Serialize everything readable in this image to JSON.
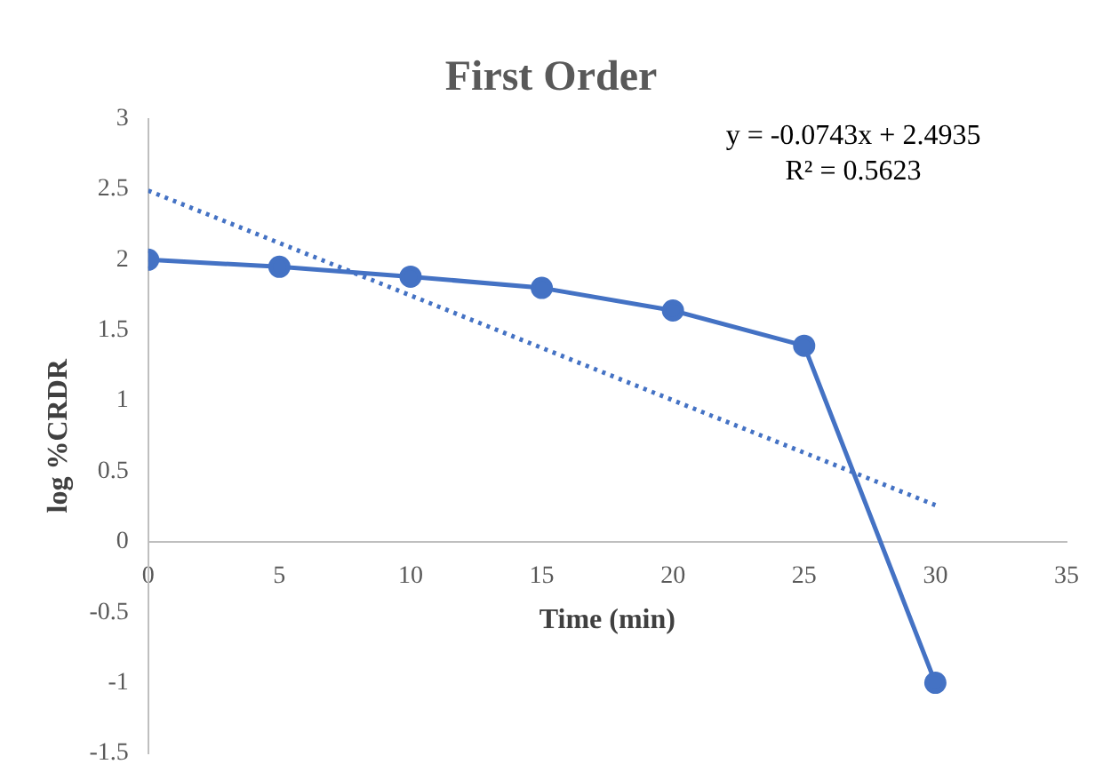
{
  "chart_data": {
    "type": "line",
    "title": "First Order",
    "xlabel": "Time (min)",
    "ylabel": "log %CRDR",
    "annotations": [
      "y = -0.0743x + 2.4935",
      "R² = 0.5623"
    ],
    "xlim": [
      0,
      35
    ],
    "xticks": [
      0,
      5,
      10,
      15,
      20,
      25,
      30,
      35
    ],
    "ylim": [
      -1.5,
      3
    ],
    "yticks": [
      -1.5,
      -1,
      -0.5,
      0,
      0.5,
      1,
      1.5,
      2,
      2.5,
      3
    ],
    "grid": false,
    "legend": false,
    "series": [
      {
        "color": "#4472c4",
        "x": [
          0,
          5,
          10,
          15,
          20,
          25,
          30
        ],
        "values": [
          2.0,
          1.95,
          1.88,
          1.8,
          1.64,
          1.39,
          -1.0
        ],
        "marker": "circle",
        "line_style": "solid"
      },
      {
        "color": "#4472c4",
        "x": [
          0,
          30
        ],
        "values": [
          2.49,
          0.26
        ],
        "marker": "none",
        "line_style": "dotted"
      }
    ]
  }
}
